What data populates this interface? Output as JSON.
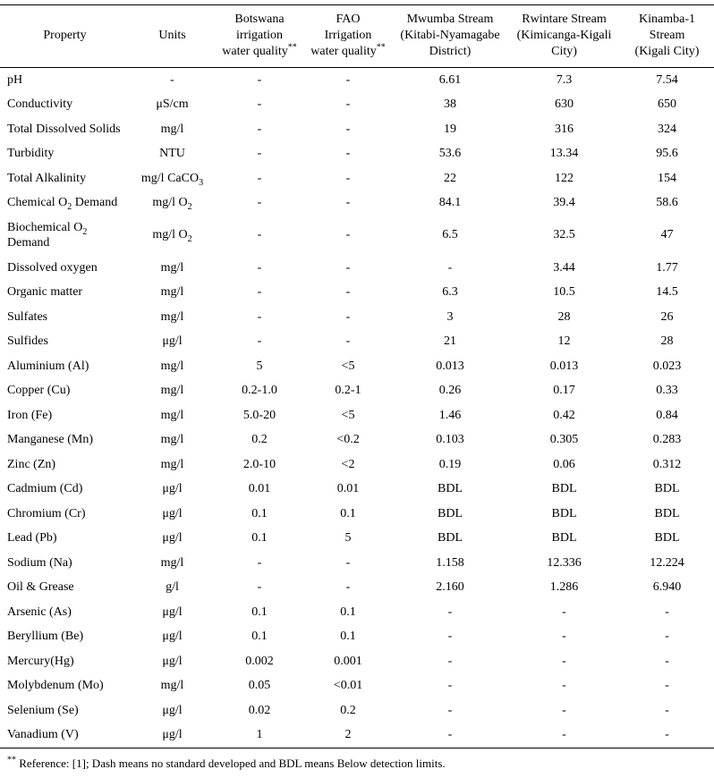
{
  "table": {
    "columns": [
      "Property",
      "Units",
      "Botswana\nirrigation\nwater quality^**^",
      "FAO\nIrrigation\nwater quality^**^",
      "Mwumba Stream\n(Kitabi-Nyamagabe\nDistrict)",
      "Rwintare Stream\n(Kimicanga-Kigali\nCity)",
      "Kinamba-1\nStream\n(Kigali City)"
    ],
    "rows": [
      [
        "pH",
        "-",
        "-",
        "-",
        "6.61",
        "7.3",
        "7.54"
      ],
      [
        "Conductivity",
        "μS/cm",
        "-",
        "-",
        "38",
        "630",
        "650"
      ],
      [
        "Total Dissolved Solids",
        "mg/l",
        "-",
        "-",
        "19",
        "316",
        "324"
      ],
      [
        "Turbidity",
        "NTU",
        "-",
        "-",
        "53.6",
        "13.34",
        "95.6"
      ],
      [
        "Total Alkalinity",
        "mg/l CaCO~3~",
        "-",
        "-",
        "22",
        "122",
        "154"
      ],
      [
        "Chemical O~2~ Demand",
        "mg/l O~2~",
        "-",
        "-",
        "84.1",
        "39.4",
        "58.6"
      ],
      [
        "Biochemical O~2~\nDemand",
        "mg/l O~2~",
        "-",
        "-",
        "6.5",
        "32.5",
        "47"
      ],
      [
        "Dissolved oxygen",
        "mg/l",
        "-",
        "-",
        "-",
        "3.44",
        "1.77"
      ],
      [
        "Organic matter",
        "mg/l",
        "-",
        "-",
        "6.3",
        "10.5",
        "14.5"
      ],
      [
        "Sulfates",
        "mg/l",
        "-",
        "-",
        "3",
        "28",
        "26"
      ],
      [
        "Sulfides",
        "μg/l",
        "-",
        "-",
        "21",
        "12",
        "28"
      ],
      [
        "Aluminium (Al)",
        "mg/l",
        "5",
        "<5",
        "0.013",
        "0.013",
        "0.023"
      ],
      [
        "Copper (Cu)",
        "mg/l",
        "0.2-1.0",
        "0.2-1",
        "0.26",
        "0.17",
        "0.33"
      ],
      [
        "Iron (Fe)",
        "mg/l",
        "5.0-20",
        "<5",
        "1.46",
        "0.42",
        "0.84"
      ],
      [
        "Manganese (Mn)",
        "mg/l",
        "0.2",
        "<0.2",
        "0.103",
        "0.305",
        "0.283"
      ],
      [
        "Zinc (Zn)",
        "mg/l",
        "2.0-10",
        "<2",
        "0.19",
        "0.06",
        "0.312"
      ],
      [
        "Cadmium (Cd)",
        "μg/l",
        "0.01",
        "0.01",
        "BDL",
        "BDL",
        "BDL"
      ],
      [
        "Chromium (Cr)",
        "μg/l",
        "0.1",
        "0.1",
        "BDL",
        "BDL",
        "BDL"
      ],
      [
        "Lead (Pb)",
        "μg/l",
        "0.1",
        "5",
        "BDL",
        "BDL",
        "BDL"
      ],
      [
        "Sodium (Na)",
        "mg/l",
        "-",
        "-",
        "1.158",
        "12.336",
        "12.224"
      ],
      [
        "Oil & Grease",
        "g/l",
        "-",
        "-",
        "2.160",
        "1.286",
        "6.940"
      ],
      [
        "Arsenic (As)",
        "μg/l",
        "0.1",
        "0.1",
        "-",
        "-",
        "-"
      ],
      [
        "Beryllium (Be)",
        "μg/l",
        "0.1",
        "0.1",
        "-",
        "-",
        "-"
      ],
      [
        "Mercury(Hg)",
        "μg/l",
        "0.002",
        "0.001",
        "-",
        "-",
        "-"
      ],
      [
        "Molybdenum (Mo)",
        "mg/l",
        "0.05",
        "<0.01",
        "-",
        "-",
        "-"
      ],
      [
        "Selenium (Se)",
        "μg/l",
        "0.02",
        "0.2",
        "-",
        "-",
        "-"
      ],
      [
        "Vanadium (V)",
        "μg/l",
        "1",
        "2",
        "-",
        "-",
        "-"
      ]
    ]
  },
  "footnote": "^**^ Reference: [1]; Dash means no standard developed and BDL means Below detection limits."
}
